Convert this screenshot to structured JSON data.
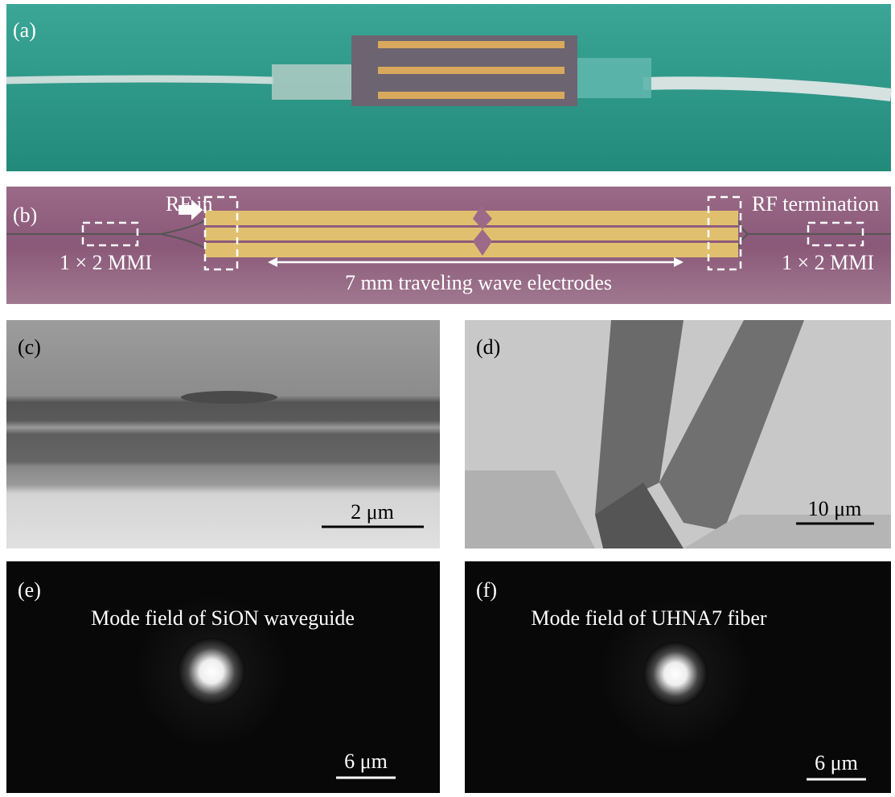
{
  "panels": [
    {
      "label": "(a)"
    },
    {
      "label": "(b)",
      "annotations": {
        "rf_in": "RF in",
        "rf_termination": "RF termination",
        "mmi_left": "1 × 2 MMI",
        "mmi_right": "1 × 2 MMI",
        "electrodes": "7 mm traveling wave electrodes"
      }
    },
    {
      "label": "(c)",
      "scale_bar": "2 μm"
    },
    {
      "label": "(d)",
      "scale_bar": "10 μm"
    },
    {
      "label": "(e)",
      "title": "Mode field of SiON waveguide",
      "scale_bar": "6 μm"
    },
    {
      "label": "(f)",
      "title": "Mode field of UHNA7 fiber",
      "scale_bar": "6 μm"
    }
  ]
}
